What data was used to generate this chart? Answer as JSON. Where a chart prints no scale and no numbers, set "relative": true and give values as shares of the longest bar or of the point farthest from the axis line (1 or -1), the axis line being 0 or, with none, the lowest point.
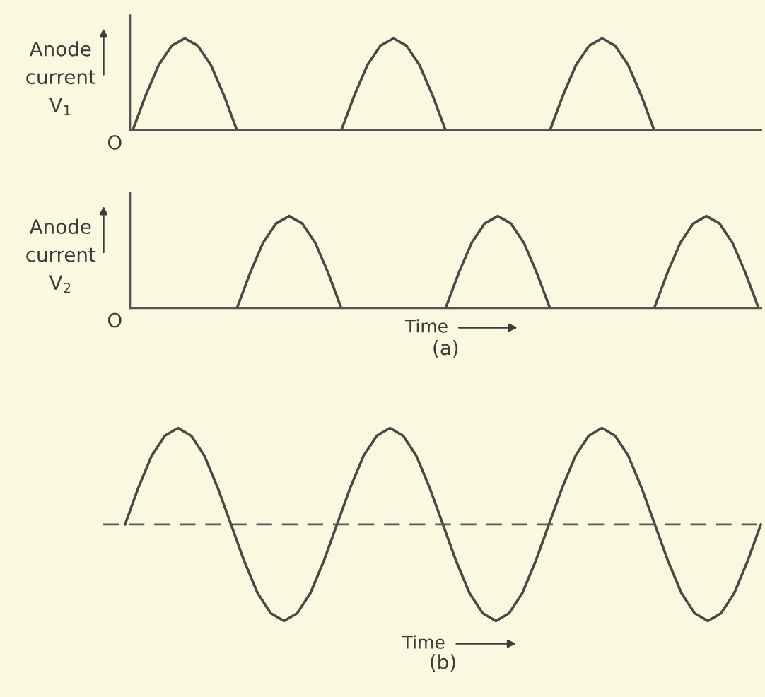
{
  "chart_data": [
    {
      "type": "line",
      "relative": true,
      "ylabel": "Anode\ncurrent\nV$_{1}$",
      "annotations": [
        "O"
      ],
      "line_style": "solid",
      "categories": [
        null,
        null,
        null,
        null,
        null,
        null,
        null,
        null,
        null,
        null,
        null,
        null,
        null,
        null,
        null,
        null,
        null,
        null,
        null,
        null,
        null,
        null,
        null,
        null,
        null,
        null,
        null,
        null,
        null,
        null,
        null,
        null,
        null,
        null,
        null,
        null,
        null,
        null,
        null,
        null,
        null,
        null,
        null,
        null,
        null,
        null,
        null,
        null,
        null
      ],
      "series": [
        {
          "color": "#4a4a44",
          "values": [
            0,
            0.38,
            0.71,
            0.92,
            1,
            0.92,
            0.71,
            0.38,
            0,
            0,
            0,
            0,
            0,
            0,
            0,
            0,
            0,
            0.38,
            0.71,
            0.92,
            1,
            0.92,
            0.71,
            0.38,
            0,
            0,
            0,
            0,
            0,
            0,
            0,
            0,
            0,
            0.38,
            0.71,
            0.92,
            1,
            0.92,
            0.71,
            0.38,
            0,
            0,
            0,
            0,
            0,
            0,
            0,
            0,
            0
          ]
        }
      ]
    },
    {
      "type": "line",
      "relative": true,
      "ylabel": "Anode\ncurrent\nV$_{2}$",
      "xlabel": "Time",
      "annotations": [
        "O",
        "(a)"
      ],
      "line_style": "solid",
      "categories": [
        null,
        null,
        null,
        null,
        null,
        null,
        null,
        null,
        null,
        null,
        null,
        null,
        null,
        null,
        null,
        null,
        null,
        null,
        null,
        null,
        null,
        null,
        null,
        null,
        null,
        null,
        null,
        null,
        null,
        null,
        null,
        null,
        null,
        null,
        null,
        null,
        null,
        null,
        null,
        null,
        null,
        null,
        null,
        null,
        null,
        null,
        null,
        null,
        null
      ],
      "series": [
        {
          "color": "#4a4a44",
          "values": [
            0,
            0,
            0,
            0,
            0,
            0,
            0,
            0,
            0,
            0.38,
            0.71,
            0.92,
            1,
            0.92,
            0.71,
            0.38,
            0,
            0,
            0,
            0,
            0,
            0,
            0,
            0,
            0,
            0.38,
            0.71,
            0.92,
            1,
            0.92,
            0.71,
            0.38,
            0,
            0,
            0,
            0,
            0,
            0,
            0,
            0,
            0,
            0.38,
            0.71,
            0.92,
            1,
            0.92,
            0.71,
            0.38,
            0
          ]
        }
      ]
    },
    {
      "type": "line",
      "relative": true,
      "xlabel": "Time",
      "annotations": [
        "(b)"
      ],
      "line_style": "solid",
      "ref_lines": [
        {
          "axis": "y",
          "value": 0,
          "line_style": "dashed",
          "color": "#5a5a54"
        }
      ],
      "categories": [
        null,
        null,
        null,
        null,
        null,
        null,
        null,
        null,
        null,
        null,
        null,
        null,
        null,
        null,
        null,
        null,
        null,
        null,
        null,
        null,
        null,
        null,
        null,
        null,
        null,
        null,
        null,
        null,
        null,
        null,
        null,
        null,
        null,
        null,
        null,
        null,
        null,
        null,
        null,
        null,
        null,
        null,
        null,
        null,
        null,
        null,
        null,
        null,
        null
      ],
      "series": [
        {
          "color": "#4a4a44",
          "values": [
            0,
            0.38,
            0.71,
            0.92,
            1,
            0.92,
            0.71,
            0.38,
            0,
            -0.38,
            -0.71,
            -0.92,
            -1,
            -0.92,
            -0.71,
            -0.38,
            0,
            0.38,
            0.71,
            0.92,
            1,
            0.92,
            0.71,
            0.38,
            0,
            -0.38,
            -0.71,
            -0.92,
            -1,
            -0.92,
            -0.71,
            -0.38,
            0,
            0.38,
            0.71,
            0.92,
            1,
            0.92,
            0.71,
            0.38,
            0,
            -0.38,
            -0.71,
            -0.92,
            -1,
            -0.92,
            -0.71,
            -0.38,
            0
          ]
        }
      ]
    }
  ]
}
